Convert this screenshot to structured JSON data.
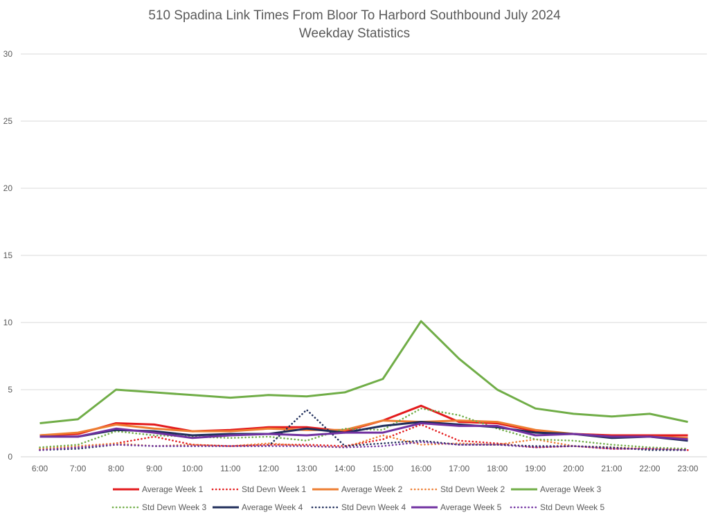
{
  "chart_data": {
    "type": "line",
    "title": "510 Spadina Link Times From Bloor To Harbord Southbound July 2024",
    "subtitle": "Weekday Statistics",
    "xlabel": "",
    "ylabel": "",
    "ylim": [
      0,
      30
    ],
    "yticks": [
      0,
      5,
      10,
      15,
      20,
      25,
      30
    ],
    "grid": true,
    "legend_position": "bottom",
    "categories": [
      "6:00",
      "7:00",
      "8:00",
      "9:00",
      "10:00",
      "11:00",
      "12:00",
      "13:00",
      "14:00",
      "15:00",
      "16:00",
      "17:00",
      "18:00",
      "19:00",
      "20:00",
      "21:00",
      "22:00",
      "23:00"
    ],
    "series": [
      {
        "name": "Average Week 1",
        "color": "#e31a1c",
        "style": "solid",
        "values": [
          1.6,
          1.7,
          2.5,
          2.4,
          1.9,
          2.0,
          2.2,
          2.2,
          1.9,
          2.7,
          3.8,
          2.6,
          2.5,
          1.9,
          1.7,
          1.6,
          1.6,
          1.6
        ]
      },
      {
        "name": "Std Devn Week 1",
        "color": "#e31a1c",
        "style": "dotted",
        "values": [
          0.5,
          0.7,
          1.0,
          1.5,
          0.9,
          0.8,
          0.9,
          0.9,
          0.8,
          1.3,
          2.4,
          1.2,
          1.0,
          0.7,
          0.8,
          0.6,
          0.6,
          0.5
        ]
      },
      {
        "name": "Average Week 2",
        "color": "#ed7d31",
        "style": "solid",
        "values": [
          1.6,
          1.8,
          2.4,
          2.1,
          1.9,
          1.9,
          2.1,
          2.0,
          2.0,
          2.7,
          2.6,
          2.7,
          2.6,
          2.0,
          1.7,
          1.5,
          1.5,
          1.4
        ]
      },
      {
        "name": "Std Devn Week 2",
        "color": "#ed7d31",
        "style": "dotted",
        "values": [
          0.6,
          0.8,
          1.0,
          0.8,
          0.9,
          0.8,
          1.0,
          0.8,
          0.7,
          1.6,
          0.9,
          1.0,
          0.9,
          1.3,
          0.8,
          0.7,
          0.6,
          0.6
        ]
      },
      {
        "name": "Average Week 3",
        "color": "#70ad47",
        "style": "solid",
        "values": [
          2.5,
          2.8,
          5.0,
          4.8,
          4.6,
          4.4,
          4.6,
          4.5,
          4.8,
          5.8,
          10.1,
          7.3,
          5.0,
          3.6,
          3.2,
          3.0,
          3.2,
          2.6
        ]
      },
      {
        "name": "Std Devn Week 3",
        "color": "#70ad47",
        "style": "dotted",
        "values": [
          0.7,
          0.9,
          1.9,
          1.6,
          1.5,
          1.4,
          1.5,
          1.2,
          2.1,
          2.0,
          3.6,
          3.1,
          2.1,
          1.3,
          1.2,
          0.9,
          0.7,
          0.6
        ]
      },
      {
        "name": "Average Week 4",
        "color": "#1f2d5a",
        "style": "solid",
        "values": [
          1.5,
          1.5,
          2.0,
          1.9,
          1.6,
          1.7,
          1.7,
          2.1,
          1.8,
          2.3,
          2.6,
          2.4,
          2.2,
          1.8,
          1.7,
          1.4,
          1.5,
          1.2
        ]
      },
      {
        "name": "Std Devn Week 4",
        "color": "#1f2d5a",
        "style": "dotted",
        "values": [
          0.5,
          0.6,
          0.9,
          0.8,
          0.8,
          0.8,
          0.8,
          3.5,
          0.8,
          1.0,
          1.2,
          0.9,
          0.9,
          0.8,
          0.8,
          0.7,
          0.5,
          0.5
        ]
      },
      {
        "name": "Average Week 5",
        "color": "#7030a0",
        "style": "solid",
        "values": [
          1.5,
          1.5,
          2.1,
          1.8,
          1.4,
          1.6,
          1.7,
          1.6,
          1.8,
          1.8,
          2.5,
          2.3,
          2.3,
          1.6,
          1.7,
          1.5,
          1.5,
          1.3
        ]
      },
      {
        "name": "Std Devn Week 5",
        "color": "#7030a0",
        "style": "dotted",
        "values": [
          0.5,
          0.7,
          0.9,
          0.8,
          0.8,
          0.8,
          0.8,
          0.8,
          0.7,
          0.8,
          1.1,
          0.9,
          0.9,
          0.7,
          0.8,
          0.6,
          0.6,
          0.5
        ]
      }
    ]
  }
}
